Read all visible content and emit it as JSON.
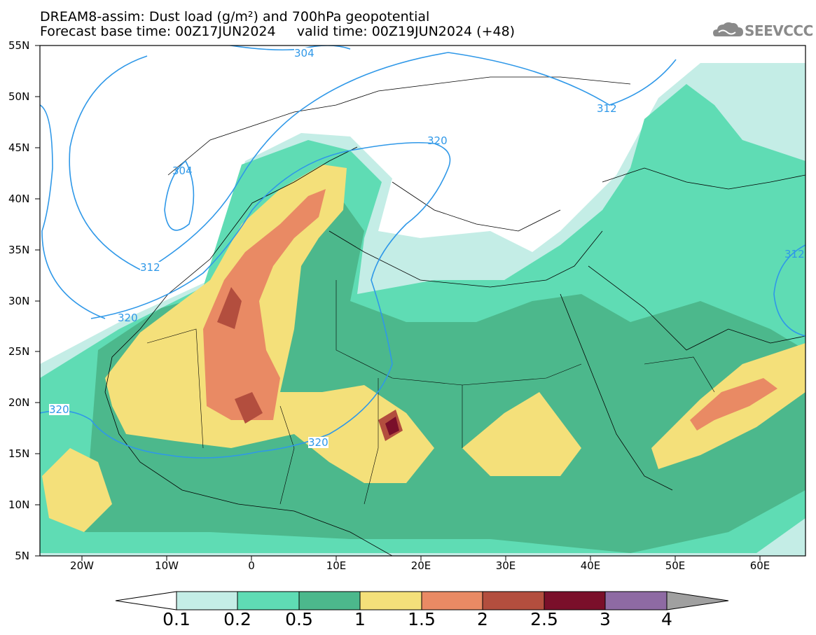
{
  "title_line1": "DREAM8-assim: Dust load (g/m²) and 700hPa geopotential",
  "title_line2": "Forecast base time: 00Z17JUN2024     valid time: 00Z19JUN2024 (+48)",
  "logo_text": "SEEVCCC",
  "y_axis_labels": [
    "55N",
    "50N",
    "45N",
    "40N",
    "35N",
    "30N",
    "25N",
    "20N",
    "15N",
    "10N",
    "5N"
  ],
  "x_axis_labels": [
    "20W",
    "10W",
    "0",
    "10E",
    "20E",
    "30E",
    "40E",
    "50E",
    "60E"
  ],
  "contour_labels": [
    "304",
    "312",
    "304",
    "320",
    "312",
    "320",
    "320",
    "312",
    "320"
  ],
  "colorbar": {
    "ticks": [
      "0.1",
      "0.2",
      "0.5",
      "1",
      "1.5",
      "2",
      "2.5",
      "3",
      "4"
    ],
    "colors": [
      "#c4ede6",
      "#5fdcb4",
      "#4cb88c",
      "#f4e07a",
      "#e98a64",
      "#b34e3e",
      "#7a0f2a",
      "#8e6aa3",
      "#a0a0a0"
    ]
  },
  "contour_color": "#2f98e8"
}
